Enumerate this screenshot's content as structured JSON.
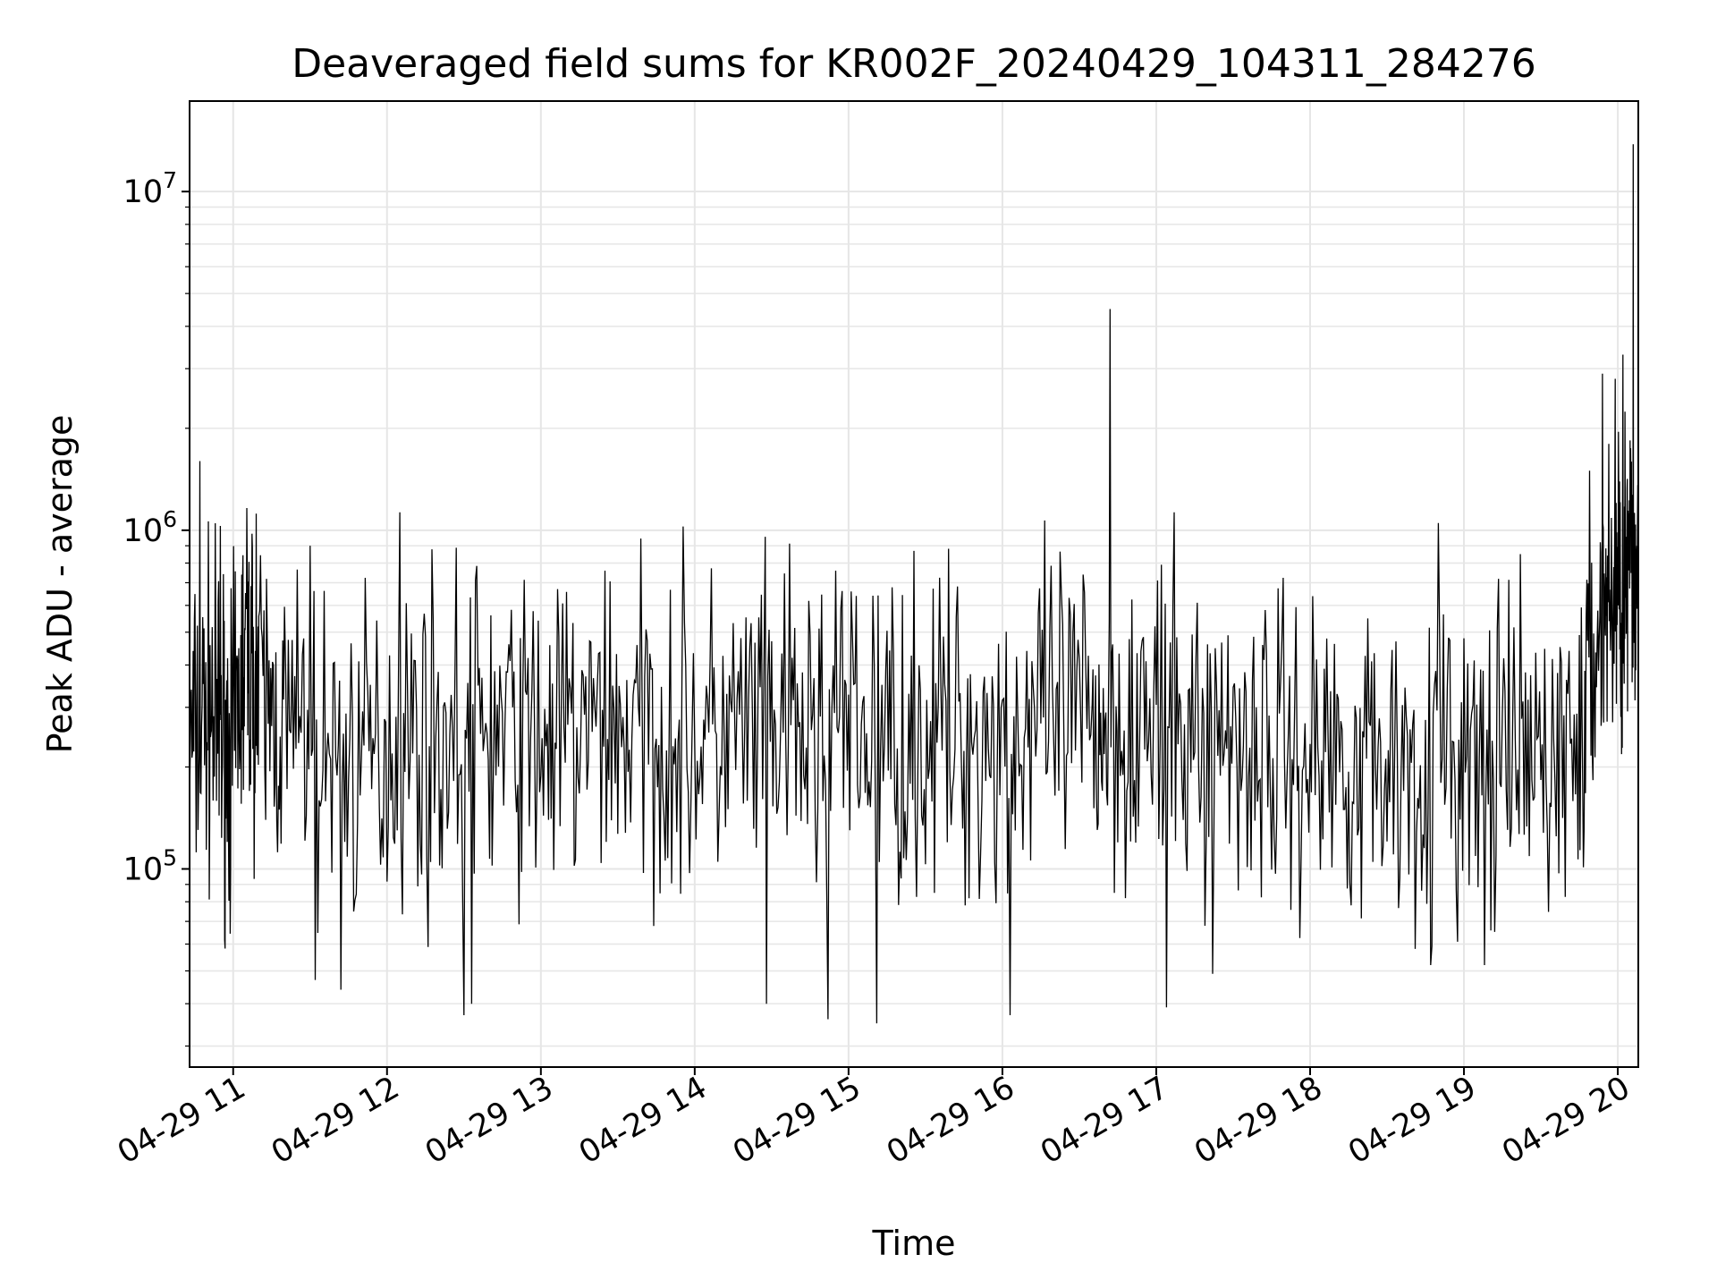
{
  "chart_data": {
    "type": "line",
    "title": "Deaveraged field sums for KR002F_20240429_104311_284276",
    "xlabel": "Time",
    "ylabel": "Peak ADU - average",
    "yscale": "log",
    "grid": true,
    "line_color": "#000000",
    "grid_color": "#e6e6e6",
    "xlim": [
      "2024-04-29 10:43",
      "2024-04-29 20:08"
    ],
    "ylim": [
      26000,
      18500000
    ],
    "x_ticks": [
      {
        "value": "2024-04-29 11:00",
        "label": "04-29 11"
      },
      {
        "value": "2024-04-29 12:00",
        "label": "04-29 12"
      },
      {
        "value": "2024-04-29 13:00",
        "label": "04-29 13"
      },
      {
        "value": "2024-04-29 14:00",
        "label": "04-29 14"
      },
      {
        "value": "2024-04-29 15:00",
        "label": "04-29 15"
      },
      {
        "value": "2024-04-29 16:00",
        "label": "04-29 16"
      },
      {
        "value": "2024-04-29 17:00",
        "label": "04-29 17"
      },
      {
        "value": "2024-04-29 18:00",
        "label": "04-29 18"
      },
      {
        "value": "2024-04-29 19:00",
        "label": "04-29 19"
      },
      {
        "value": "2024-04-29 20:00",
        "label": "04-29 20"
      }
    ],
    "y_ticks": [
      {
        "value": 100000,
        "base": "10",
        "exp": "5"
      },
      {
        "value": 1000000,
        "base": "10",
        "exp": "6"
      },
      {
        "value": 10000000,
        "base": "10",
        "exp": "7"
      }
    ],
    "series": [
      {
        "x": [
          "2024-04-29 10:43",
          "2024-04-29 10:50",
          "2024-04-29 10:55",
          "2024-04-29 11:00",
          "2024-04-29 11:05",
          "2024-04-29 11:10",
          "2024-04-29 11:20",
          "2024-04-29 11:35",
          "2024-04-29 11:50",
          "2024-04-29 12:05",
          "2024-04-29 12:20",
          "2024-04-29 12:35",
          "2024-04-29 12:50",
          "2024-04-29 13:05",
          "2024-04-29 13:20",
          "2024-04-29 13:35",
          "2024-04-29 13:50",
          "2024-04-29 14:05",
          "2024-04-29 14:20",
          "2024-04-29 14:35",
          "2024-04-29 14:50",
          "2024-04-29 15:05",
          "2024-04-29 15:20",
          "2024-04-29 15:35",
          "2024-04-29 15:50",
          "2024-04-29 16:05",
          "2024-04-29 16:20",
          "2024-04-29 16:35",
          "2024-04-29 16:45",
          "2024-04-29 17:00",
          "2024-04-29 17:15",
          "2024-04-29 17:30",
          "2024-04-29 17:45",
          "2024-04-29 18:00",
          "2024-04-29 18:15",
          "2024-04-29 18:30",
          "2024-04-29 18:45",
          "2024-04-29 19:00",
          "2024-04-29 19:15",
          "2024-04-29 19:30",
          "2024-04-29 19:45",
          "2024-04-29 19:53",
          "2024-04-29 19:58",
          "2024-04-29 20:02",
          "2024-04-29 20:05",
          "2024-04-29 20:08"
        ],
        "y": [
          220000,
          300000,
          250000,
          230000,
          450000,
          320000,
          260000,
          220000,
          200000,
          250000,
          240000,
          260000,
          250000,
          240000,
          250000,
          260000,
          250000,
          240000,
          250000,
          250000,
          240000,
          250000,
          240000,
          250000,
          240000,
          250000,
          270000,
          270000,
          280000,
          260000,
          240000,
          250000,
          230000,
          220000,
          220000,
          210000,
          210000,
          200000,
          200000,
          210000,
          230000,
          550000,
          650000,
          700000,
          750000,
          800000
        ],
        "noise": 0.55,
        "points_per_segment": 30
      }
    ],
    "spikes": [
      {
        "x": "2024-04-29 10:47",
        "y": 1600000
      },
      {
        "x": "2024-04-29 10:55",
        "y": 1030000
      },
      {
        "x": "2024-04-29 11:09",
        "y": 1120000
      },
      {
        "x": "2024-04-29 11:30",
        "y": 900000
      },
      {
        "x": "2024-04-29 12:05",
        "y": 1130000
      },
      {
        "x": "2024-04-29 12:30",
        "y": 800000
      },
      {
        "x": "2024-04-29 13:25",
        "y": 760000
      },
      {
        "x": "2024-04-29 14:55",
        "y": 760000
      },
      {
        "x": "2024-04-29 16:42",
        "y": 4500000
      },
      {
        "x": "2024-04-29 18:50",
        "y": 1050000
      },
      {
        "x": "2024-04-29 19:54",
        "y": 2900000
      },
      {
        "x": "2024-04-29 19:59",
        "y": 2800000
      },
      {
        "x": "2024-04-29 20:02",
        "y": 3300000
      },
      {
        "x": "2024-04-29 20:06",
        "y": 13800000
      }
    ],
    "dips": [
      {
        "x": "2024-04-29 11:32",
        "y": 47000
      },
      {
        "x": "2024-04-29 11:42",
        "y": 44000
      },
      {
        "x": "2024-04-29 12:30",
        "y": 37000
      },
      {
        "x": "2024-04-29 12:33",
        "y": 40000
      },
      {
        "x": "2024-04-29 14:28",
        "y": 40000
      },
      {
        "x": "2024-04-29 14:52",
        "y": 36000
      },
      {
        "x": "2024-04-29 15:11",
        "y": 35000
      },
      {
        "x": "2024-04-29 16:03",
        "y": 37000
      },
      {
        "x": "2024-04-29 17:04",
        "y": 39000
      },
      {
        "x": "2024-04-29 17:22",
        "y": 49000
      },
      {
        "x": "2024-04-29 18:47",
        "y": 52000
      },
      {
        "x": "2024-04-29 19:08",
        "y": 52000
      }
    ]
  }
}
